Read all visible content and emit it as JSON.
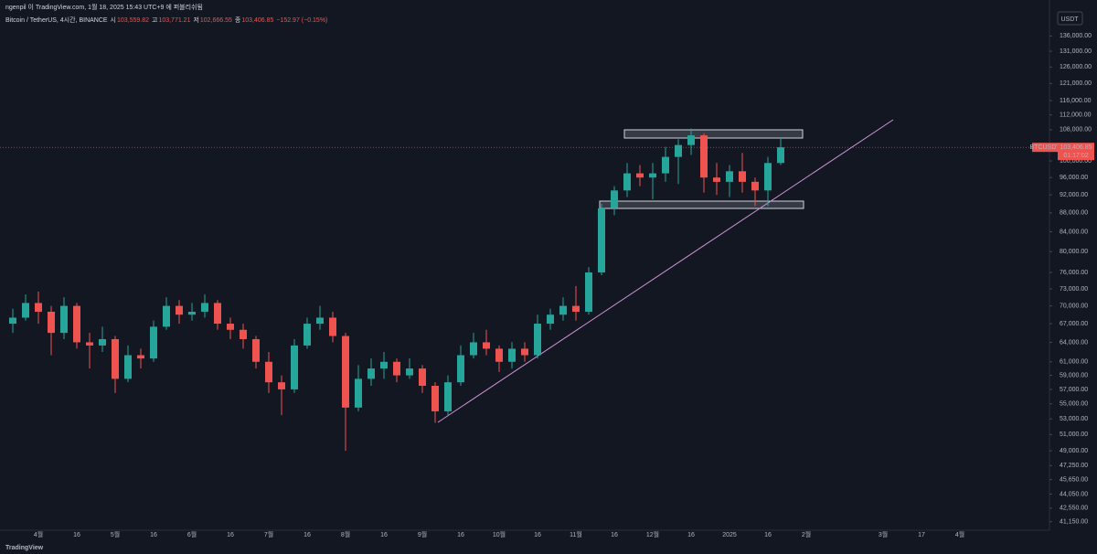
{
  "header": {
    "published": "ngenpil 이 TradingView.com, 1월 18, 2025 15:43 UTC+9 에 퍼블리쉬됨",
    "symbol": "Bitcoin / TetherUS, 4시간, BINANCE",
    "ohlc": [
      "시",
      "103,559.82",
      "고",
      "103,771.21",
      "저",
      "102,666.55",
      "종",
      "103,406.85",
      "−152.97 (−0.15%)"
    ],
    "currency": "USDT",
    "brand": "TradingView"
  },
  "price_label": {
    "symbol": "BTCUSDT",
    "price": "103,406.85",
    "countdown": "01:17:02"
  },
  "chart_data": {
    "type": "candlestick",
    "log_scale": true,
    "up_color": "#26a69a",
    "down_color": "#ef5350",
    "categories": [
      null,
      null,
      "4월",
      null,
      null,
      "16",
      null,
      null,
      "5월",
      null,
      null,
      "16",
      null,
      null,
      "6월",
      null,
      null,
      "16",
      null,
      null,
      "7월",
      null,
      null,
      "16",
      null,
      null,
      "8월",
      null,
      null,
      "16",
      null,
      null,
      "9월",
      null,
      null,
      "16",
      null,
      null,
      "10월",
      null,
      null,
      "16",
      null,
      null,
      "11월",
      null,
      null,
      "16",
      null,
      null,
      "12월",
      null,
      null,
      "16",
      null,
      null,
      "2025",
      null,
      null,
      "16",
      null,
      null,
      "2월",
      null,
      null,
      null,
      null,
      null,
      "3월",
      null,
      null,
      "17",
      null,
      null,
      "4월",
      null,
      null,
      null,
      null,
      null,
      null
    ],
    "open": [
      67000,
      68000,
      70500,
      69000,
      65500,
      70000,
      64000,
      63500,
      64500,
      58500,
      62000,
      61500,
      66500,
      70000,
      68500,
      69000,
      70500,
      67000,
      66000,
      64500,
      61000,
      58000,
      57000,
      63500,
      67000,
      68000,
      65000,
      54500,
      58500,
      60000,
      61000,
      59000,
      60000,
      57500,
      54000,
      58000,
      62000,
      64000,
      63000,
      61000,
      63000,
      62000,
      67000,
      68500,
      70000,
      69000,
      76000,
      89000,
      93000,
      97000,
      96000,
      97000,
      101000,
      104000,
      106500,
      96000,
      95000,
      97500,
      95000,
      93000,
      99500,
      null,
      null,
      null,
      null,
      null,
      null,
      null,
      null,
      null,
      null,
      null,
      null,
      null,
      null,
      null,
      null,
      null,
      null,
      null,
      null
    ],
    "high": [
      69500,
      72000,
      72500,
      70000,
      71500,
      70500,
      65500,
      66500,
      65000,
      63500,
      63000,
      67500,
      71500,
      71000,
      70500,
      72000,
      71000,
      68000,
      67000,
      65000,
      62500,
      59000,
      64500,
      68000,
      70000,
      69000,
      65500,
      60500,
      61500,
      62500,
      61500,
      61500,
      60500,
      58000,
      59000,
      63500,
      65500,
      66000,
      63500,
      64000,
      64000,
      68500,
      69500,
      71500,
      73500,
      77000,
      90000,
      94000,
      99500,
      99000,
      99500,
      103500,
      105500,
      108300,
      107000,
      99500,
      99000,
      102000,
      96000,
      101000,
      106000,
      null,
      null,
      null,
      null,
      null,
      null,
      null,
      null,
      null,
      null,
      null,
      null,
      null,
      null,
      null,
      null,
      null,
      null,
      null,
      null
    ],
    "low": [
      65500,
      67500,
      67000,
      62000,
      64500,
      63000,
      60000,
      62500,
      56500,
      58000,
      60000,
      61000,
      66000,
      67000,
      67500,
      68000,
      66000,
      64500,
      63000,
      60000,
      56500,
      53500,
      56500,
      63000,
      66000,
      64000,
      49000,
      54000,
      57500,
      58500,
      58000,
      58500,
      56500,
      52500,
      53500,
      57500,
      61500,
      62000,
      59500,
      60000,
      61000,
      61500,
      66000,
      67500,
      67500,
      68500,
      75500,
      87500,
      91500,
      94000,
      91000,
      95000,
      94500,
      101500,
      92500,
      92000,
      91500,
      92500,
      89500,
      89500,
      99000,
      null,
      null,
      null,
      null,
      null,
      null,
      null,
      null,
      null,
      null,
      null,
      null,
      null,
      null,
      null,
      null,
      null,
      null,
      null,
      null
    ],
    "close": [
      68000,
      70500,
      69000,
      65500,
      70000,
      64000,
      63500,
      64500,
      58500,
      62000,
      61500,
      66500,
      70000,
      68500,
      69000,
      70500,
      67000,
      66000,
      64500,
      61000,
      58000,
      57000,
      63500,
      67000,
      68000,
      65000,
      54500,
      58500,
      60000,
      61000,
      59000,
      60000,
      57500,
      54000,
      58000,
      62000,
      64000,
      63000,
      61000,
      63000,
      62000,
      67000,
      68500,
      70000,
      69000,
      76000,
      89000,
      93000,
      97000,
      96000,
      97000,
      101000,
      104000,
      106500,
      96000,
      95000,
      97500,
      95000,
      93000,
      99500,
      103406.85,
      null,
      null,
      null,
      null,
      null,
      null,
      null,
      null,
      null,
      null,
      null,
      null,
      null,
      null,
      null,
      null,
      null,
      null,
      null,
      null
    ],
    "ylim": [
      40300,
      144000
    ],
    "yticks": [
      {
        "value": 41150,
        "label": "41,150.00"
      },
      {
        "value": 42550,
        "label": "42,550.00"
      },
      {
        "value": 44050,
        "label": "44,050.00"
      },
      {
        "value": 45650,
        "label": "45,650.00"
      },
      {
        "value": 47250,
        "label": "47,250.00"
      },
      {
        "value": 49000,
        "label": "49,000.00"
      },
      {
        "value": 51000,
        "label": "51,000.00"
      },
      {
        "value": 53000,
        "label": "53,000.00"
      },
      {
        "value": 55000,
        "label": "55,000.00"
      },
      {
        "value": 57000,
        "label": "57,000.00"
      },
      {
        "value": 59000,
        "label": "59,000.00"
      },
      {
        "value": 61000,
        "label": "61,000.00"
      },
      {
        "value": 64000,
        "label": "64,000.00"
      },
      {
        "value": 67000,
        "label": "67,000.00"
      },
      {
        "value": 70000,
        "label": "70,000.00"
      },
      {
        "value": 73000,
        "label": "73,000.00"
      },
      {
        "value": 76000,
        "label": "76,000.00"
      },
      {
        "value": 80000,
        "label": "80,000.00"
      },
      {
        "value": 84000,
        "label": "84,000.00"
      },
      {
        "value": 88000,
        "label": "88,000.00"
      },
      {
        "value": 92000,
        "label": "92,000.00"
      },
      {
        "value": 96000,
        "label": "96,000.00"
      },
      {
        "value": 100000,
        "label": "100,000.00"
      },
      {
        "value": 108000,
        "label": "108,000.00"
      },
      {
        "value": 112000,
        "label": "112,000.00"
      },
      {
        "value": 116000,
        "label": "116,000.00"
      },
      {
        "value": 121000,
        "label": "121,000.00"
      },
      {
        "value": 126000,
        "label": "126,000.00"
      },
      {
        "value": 131000,
        "label": "131,000.00"
      },
      {
        "value": 136000,
        "label": "136,000.00"
      }
    ],
    "grid": false
  }
}
